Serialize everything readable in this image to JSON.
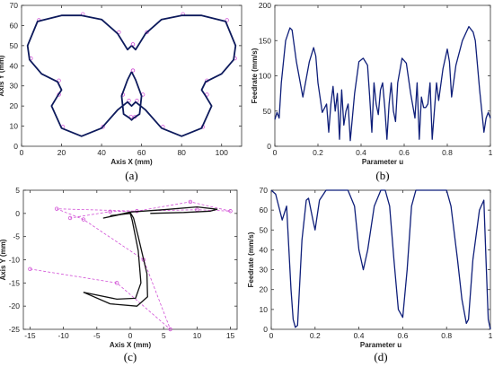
{
  "colors": {
    "curve": "#0d1a5c",
    "feedrate": "#0f1f7a",
    "control_polygon": "#d14fd6",
    "frame": "#333333"
  },
  "chart_data": [
    {
      "panel_label": "(a)",
      "type": "line",
      "xlabel": "Axis X (mm)",
      "ylabel": "Axis Y (mm)",
      "xlim": [
        0,
        110
      ],
      "ylim": [
        0,
        70
      ],
      "xticks": [
        0,
        20,
        40,
        60,
        80,
        100
      ],
      "yticks": [
        0,
        10,
        20,
        30,
        40,
        50,
        60,
        70
      ],
      "grid": false,
      "series": [
        {
          "role": "butterfly-contour",
          "x": [
            55,
            53,
            48,
            40,
            30,
            20,
            8,
            3,
            4,
            10,
            18,
            20,
            18,
            15,
            20,
            30,
            40,
            48,
            53,
            55,
            57,
            62,
            70,
            80,
            90,
            95,
            92,
            90,
            92,
            100,
            106,
            107,
            102,
            90,
            80,
            70,
            62,
            57,
            55
          ],
          "y": [
            50,
            48,
            56,
            63,
            65,
            65,
            62,
            50,
            43,
            36,
            32,
            28,
            25,
            20,
            9,
            5,
            9,
            18,
            22,
            20,
            22,
            18,
            9,
            5,
            9,
            20,
            25,
            28,
            32,
            36,
            43,
            50,
            62,
            65,
            65,
            63,
            56,
            48,
            50
          ]
        },
        {
          "role": "butterfly-body",
          "x": [
            55,
            53,
            50,
            51,
            54,
            55,
            56,
            59,
            60,
            57,
            55
          ],
          "y": [
            37,
            33,
            25,
            16,
            14,
            13,
            14,
            16,
            25,
            33,
            37
          ]
        }
      ]
    },
    {
      "panel_label": "(b)",
      "type": "line",
      "xlabel": "Parameter u",
      "ylabel": "Feedrate (mm/s)",
      "xlim": [
        0,
        1
      ],
      "ylim": [
        0,
        200
      ],
      "xticks": [
        0,
        0.2,
        0.4,
        0.6,
        0.8,
        1
      ],
      "yticks": [
        0,
        50,
        100,
        150,
        200
      ],
      "grid": false,
      "series": [
        {
          "x": [
            0,
            0.01,
            0.02,
            0.03,
            0.05,
            0.07,
            0.08,
            0.1,
            0.13,
            0.16,
            0.18,
            0.19,
            0.2,
            0.22,
            0.24,
            0.25,
            0.26,
            0.27,
            0.28,
            0.29,
            0.3,
            0.31,
            0.32,
            0.33,
            0.34,
            0.35,
            0.37,
            0.39,
            0.41,
            0.43,
            0.44,
            0.45,
            0.46,
            0.47,
            0.48,
            0.49,
            0.5,
            0.51,
            0.52,
            0.53,
            0.54,
            0.55,
            0.56,
            0.57,
            0.59,
            0.61,
            0.63,
            0.65,
            0.66,
            0.67,
            0.68,
            0.69,
            0.7,
            0.71,
            0.72,
            0.73,
            0.74,
            0.75,
            0.76,
            0.78,
            0.8,
            0.81,
            0.82,
            0.84,
            0.87,
            0.9,
            0.92,
            0.93,
            0.95,
            0.97,
            0.98,
            0.99,
            1.0
          ],
          "y": [
            38,
            48,
            40,
            90,
            150,
            168,
            165,
            120,
            70,
            120,
            140,
            128,
            90,
            48,
            60,
            20,
            60,
            85,
            50,
            75,
            10,
            80,
            30,
            50,
            60,
            8,
            75,
            120,
            125,
            115,
            70,
            20,
            90,
            60,
            45,
            80,
            90,
            55,
            10,
            60,
            90,
            50,
            35,
            90,
            125,
            118,
            75,
            40,
            90,
            10,
            70,
            55,
            55,
            60,
            90,
            10,
            50,
            90,
            65,
            110,
            138,
            120,
            70,
            115,
            150,
            170,
            162,
            150,
            80,
            20,
            40,
            48,
            40
          ]
        }
      ]
    },
    {
      "panel_label": "(c)",
      "type": "line",
      "xlabel": "Axis X (mm)",
      "ylabel": "Axis Y (mm)",
      "xlim": [
        -16,
        16
      ],
      "ylim": [
        -25,
        5
      ],
      "xticks": [
        -15,
        -10,
        -5,
        0,
        5,
        10,
        15
      ],
      "yticks": [
        -25,
        -20,
        -15,
        -10,
        -5,
        0,
        5
      ],
      "grid": false,
      "series": [
        {
          "role": "control-polygon",
          "x": [
            -15,
            -2,
            6,
            2,
            -7,
            -11,
            1,
            9,
            15,
            10,
            -3,
            -9
          ],
          "y": [
            -12,
            -15,
            -25,
            -10,
            -1.3,
            1,
            0.5,
            2.5,
            0.5,
            0.8,
            0.4,
            -1
          ],
          "dashed": true
        },
        {
          "role": "tool-path-outer",
          "x": [
            -7,
            -3,
            1,
            2.6,
            2.5,
            1.2,
            0.5,
            0,
            -4,
            0,
            5,
            10,
            13,
            12,
            8,
            3
          ],
          "y": [
            -17,
            -19.5,
            -20,
            -18,
            -13,
            -5,
            -1,
            0.2,
            -1,
            0.3,
            0.8,
            1.4,
            0.9,
            0.5,
            0.2,
            0
          ]
        },
        {
          "role": "tool-path-inner",
          "x": [
            -7,
            -2,
            0.8,
            1.6,
            1.2,
            0.3,
            0,
            -3
          ],
          "y": [
            -17,
            -18.5,
            -18.3,
            -15,
            -8,
            -1.5,
            0,
            -0.5
          ]
        }
      ]
    },
    {
      "panel_label": "(d)",
      "type": "line",
      "xlabel": "Parameter u",
      "ylabel": "Feedrate (mm/s)",
      "xlim": [
        0,
        1
      ],
      "ylim": [
        0,
        70
      ],
      "xticks": [
        0,
        0.2,
        0.4,
        0.6,
        0.8,
        1
      ],
      "yticks": [
        0,
        10,
        20,
        30,
        40,
        50,
        60,
        70
      ],
      "grid": false,
      "series": [
        {
          "x": [
            0,
            0.02,
            0.05,
            0.07,
            0.09,
            0.1,
            0.11,
            0.12,
            0.14,
            0.16,
            0.17,
            0.19,
            0.2,
            0.22,
            0.25,
            0.3,
            0.35,
            0.38,
            0.4,
            0.42,
            0.44,
            0.47,
            0.5,
            0.52,
            0.54,
            0.56,
            0.58,
            0.6,
            0.62,
            0.64,
            0.66,
            0.7,
            0.75,
            0.8,
            0.82,
            0.85,
            0.87,
            0.89,
            0.9,
            0.92,
            0.95,
            0.97,
            0.98,
            0.99,
            1.0
          ],
          "y": [
            70,
            68,
            55,
            62,
            20,
            5,
            1,
            2,
            45,
            65,
            66,
            55,
            50,
            65,
            70,
            70,
            70,
            62,
            40,
            30,
            40,
            62,
            70,
            70,
            62,
            35,
            10,
            6,
            30,
            62,
            70,
            70,
            70,
            70,
            62,
            35,
            15,
            3,
            5,
            35,
            60,
            65,
            35,
            5,
            0
          ]
        }
      ]
    }
  ]
}
